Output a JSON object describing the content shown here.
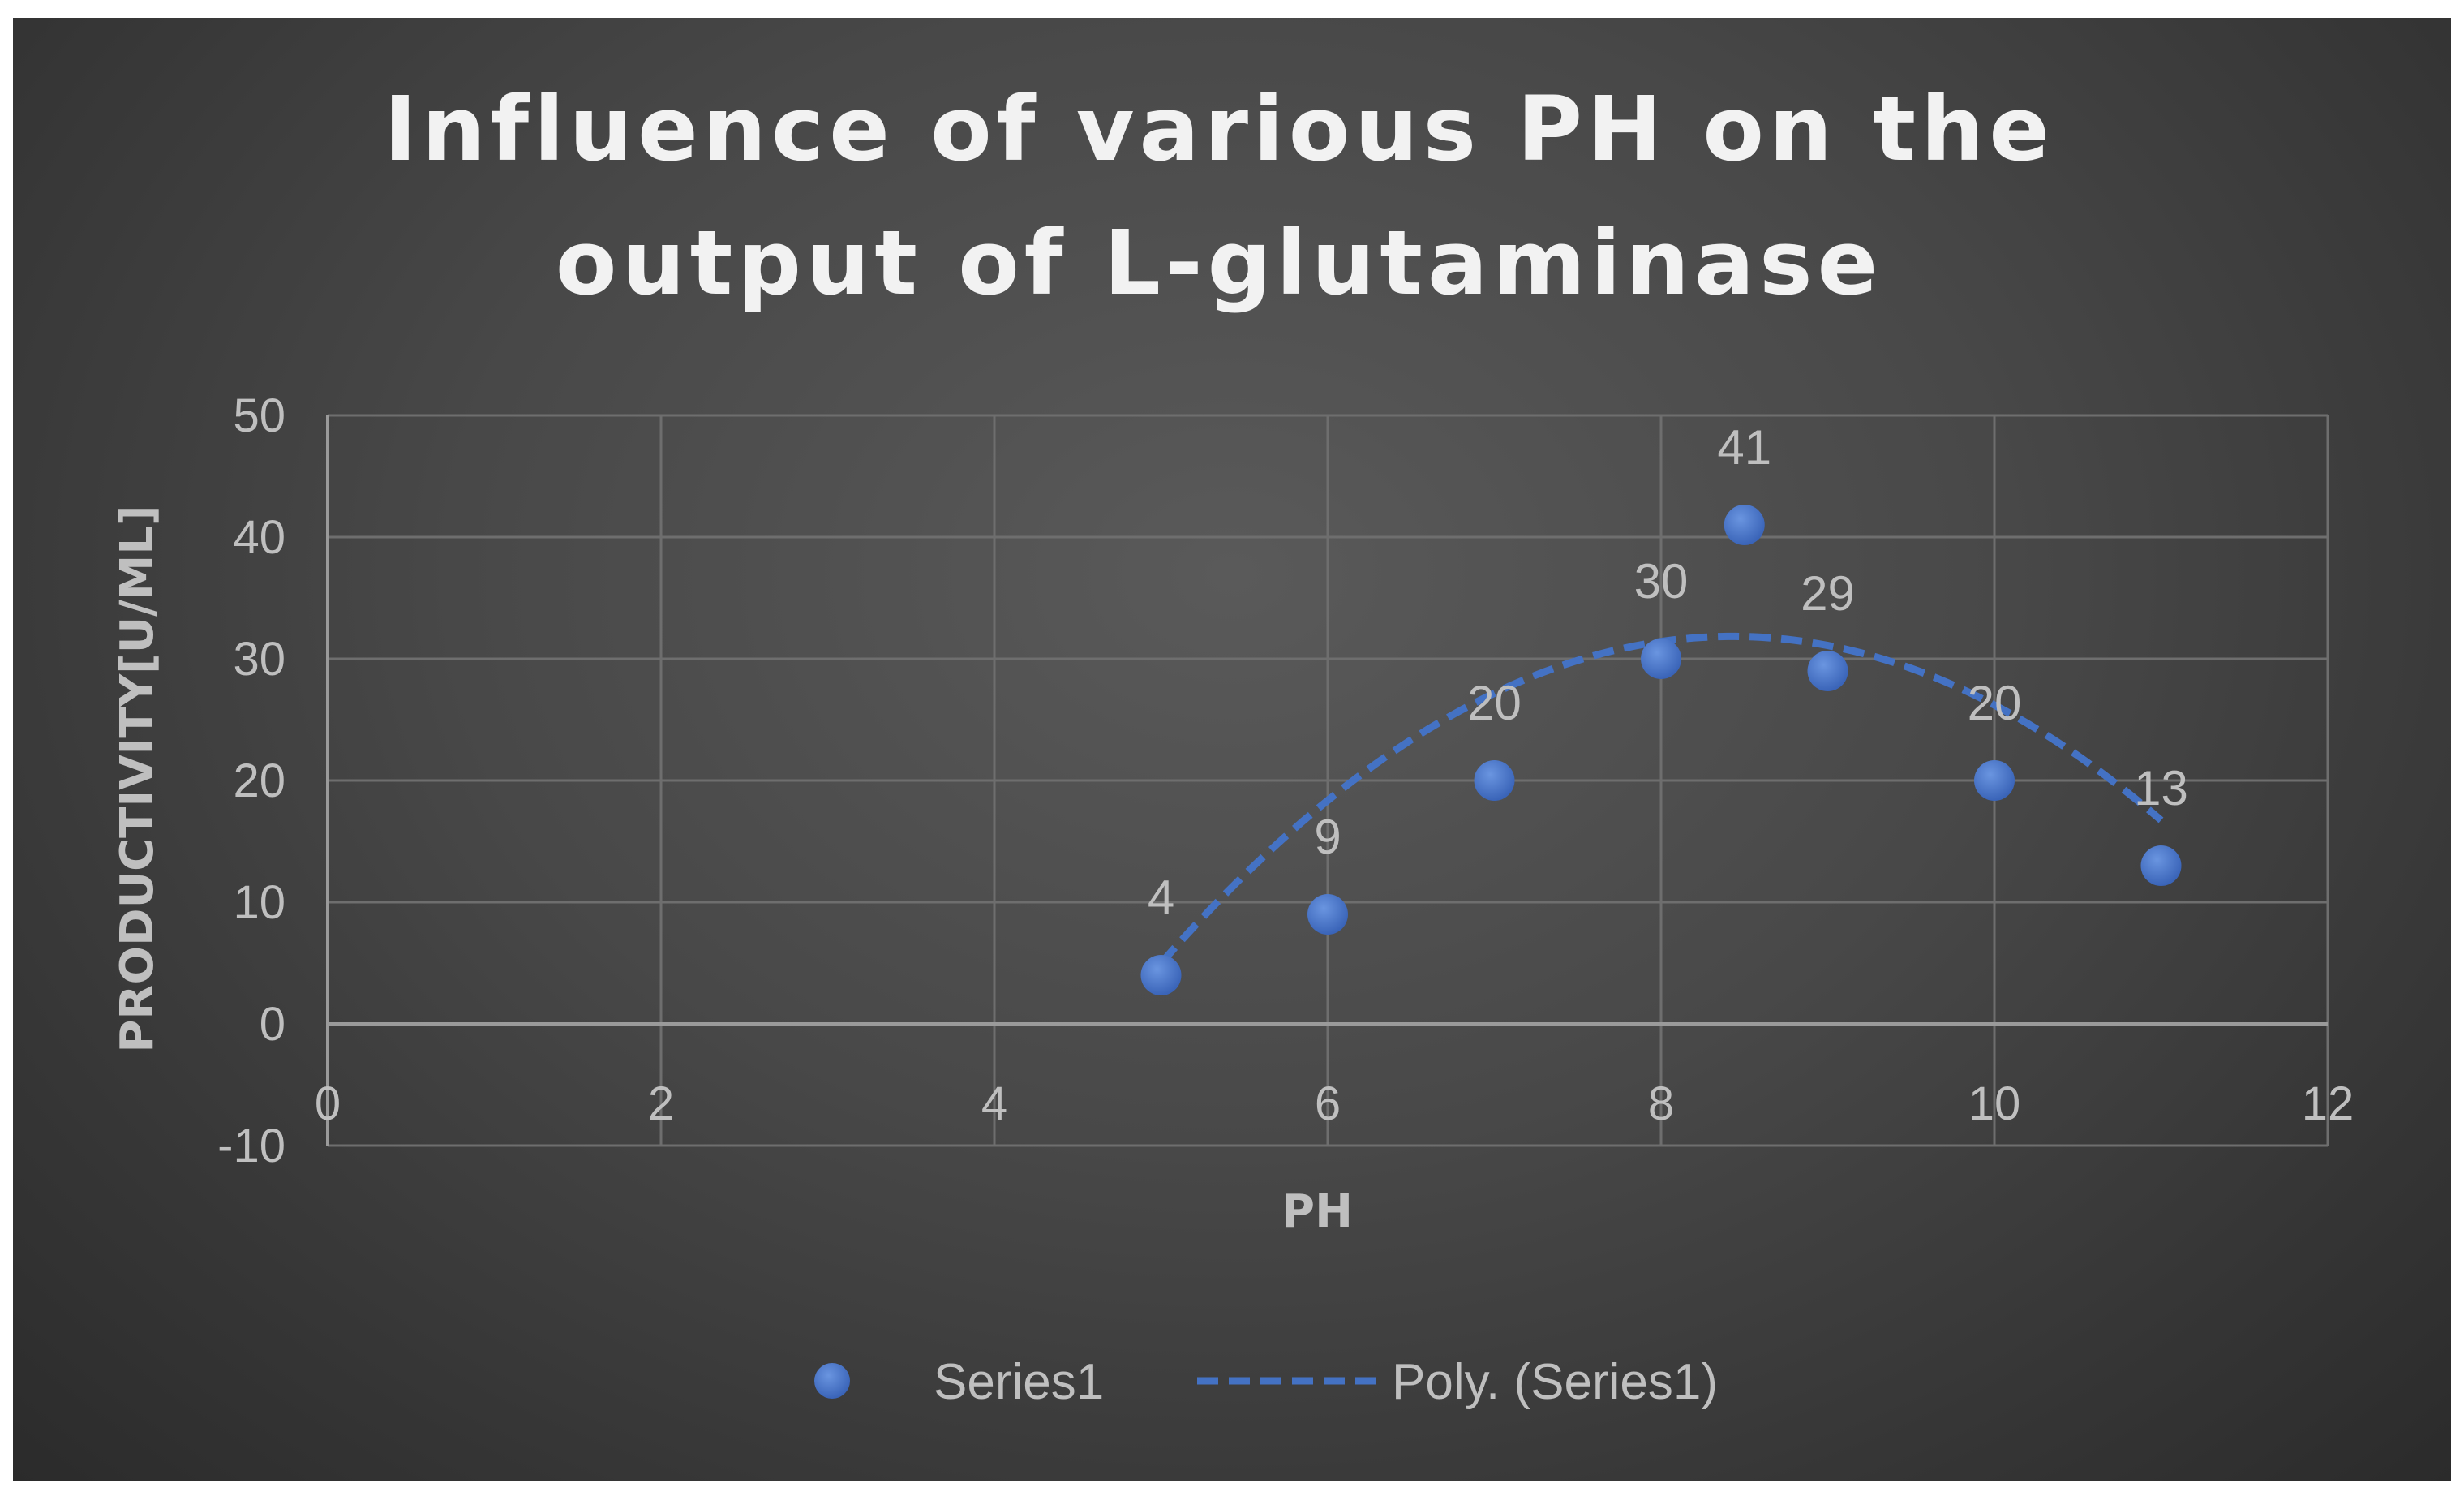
{
  "chart_data": {
    "type": "scatter",
    "title": "Influence of various PH on the output of L-glutaminase",
    "title_lines": [
      "Influence of various PH on the",
      "output of L-glutaminase"
    ],
    "xlabel": "PH",
    "ylabel": "PRODUCTIVITY[U/ML]",
    "xlim": [
      0,
      12
    ],
    "ylim": [
      -10,
      50
    ],
    "xticks": [
      0,
      2,
      4,
      6,
      8,
      10,
      12
    ],
    "yticks": [
      -10,
      0,
      10,
      20,
      30,
      40,
      50
    ],
    "grid": true,
    "legend_position": "bottom",
    "series": [
      {
        "name": "Series1",
        "x": [
          5,
          6,
          7,
          8,
          8.5,
          9,
          10,
          11
        ],
        "y": [
          4,
          9,
          20,
          30,
          41,
          29,
          20,
          13
        ],
        "data_labels": [
          "4",
          "9",
          "20",
          "30",
          "41",
          "29",
          "20",
          "13"
        ],
        "color": "#4472c4"
      }
    ],
    "trendline": {
      "name": "Poly. (Series1)",
      "type": "polynomial",
      "order": 2,
      "x_range": [
        5,
        11
      ],
      "coefficients": [
        -130.5,
        38.52,
        -2.285
      ],
      "style": "dashed",
      "color": "#4472c4"
    },
    "colors": {
      "background": "#404040",
      "grid": "#6e6e6e",
      "text": "#bfbfbf",
      "title": "#f2f2f2",
      "series": "#4472c4"
    }
  }
}
